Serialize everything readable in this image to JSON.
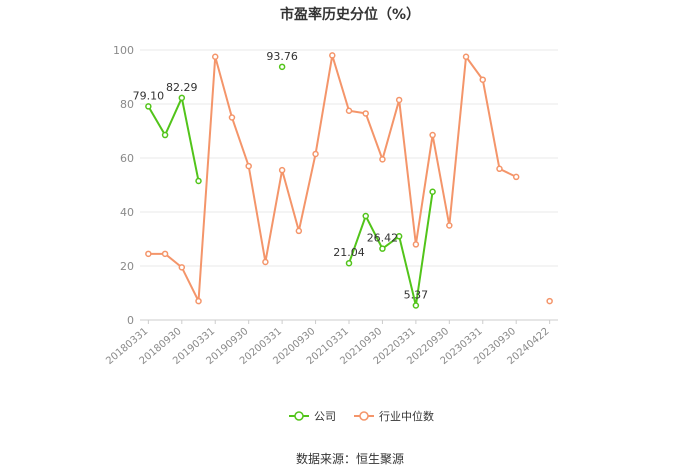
{
  "page": {
    "title": "市盈率历史分位（%）",
    "source": "数据来源：恒生聚源"
  },
  "chart_data": {
    "type": "line",
    "title": "市盈率历史分位（%）",
    "ylim": [
      0,
      100
    ],
    "yticks": [
      0,
      20,
      40,
      60,
      80,
      100
    ],
    "grid": true,
    "legend_position": "bottom",
    "x_tick_labels": [
      "20180331",
      "20180930",
      "20190331",
      "20190930",
      "20200331",
      "20200930",
      "20210331",
      "20210930",
      "20220331",
      "20220930",
      "20230331",
      "20230930",
      "20240422"
    ],
    "x": [
      "20180331",
      "20180630",
      "20180930",
      "20181231",
      "20190331",
      "20190630",
      "20190930",
      "20191231",
      "20200331",
      "20200630",
      "20200930",
      "20201231",
      "20210331",
      "20210630",
      "20210930",
      "20211231",
      "20220331",
      "20220630",
      "20220930",
      "20221231",
      "20230331",
      "20230630",
      "20230930",
      "20231231",
      "20240422"
    ],
    "series": [
      {
        "name": "公司",
        "color": "#52c41a",
        "values": [
          79.1,
          68.5,
          82.29,
          51.5,
          null,
          null,
          null,
          null,
          93.76,
          null,
          null,
          null,
          21.04,
          38.5,
          26.42,
          31.0,
          5.37,
          47.5,
          null,
          null,
          null,
          null,
          null,
          null,
          null
        ]
      },
      {
        "name": "行业中位数",
        "color": "#f4956a",
        "values": [
          24.5,
          24.5,
          19.5,
          7.0,
          97.5,
          75.0,
          57.0,
          21.5,
          55.5,
          33.0,
          61.5,
          98.0,
          77.5,
          76.5,
          59.5,
          81.5,
          28.0,
          68.5,
          35.0,
          97.5,
          89.0,
          56.0,
          53.0,
          null,
          7.0
        ]
      }
    ],
    "data_labels": [
      {
        "series": 0,
        "index": 0,
        "text": "79.10"
      },
      {
        "series": 0,
        "index": 2,
        "text": "82.29"
      },
      {
        "series": 0,
        "index": 8,
        "text": "93.76"
      },
      {
        "series": 0,
        "index": 12,
        "text": "21.04"
      },
      {
        "series": 0,
        "index": 14,
        "text": "26.42"
      },
      {
        "series": 0,
        "index": 16,
        "text": "5.37"
      }
    ]
  }
}
